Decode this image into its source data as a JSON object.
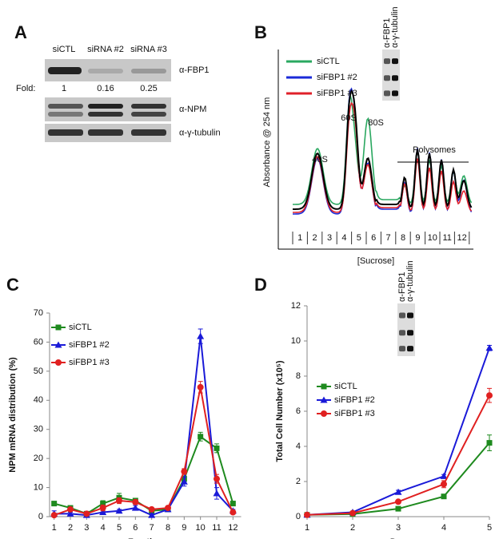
{
  "chart_data": [
    {
      "type": "blot",
      "label": "A",
      "lanes": [
        "siCTL",
        "siRNA #2",
        "siRNA #3"
      ],
      "rows": [
        "α-FBP1",
        "α-NPM",
        "α-γ-tubulin"
      ],
      "fold_label": "Fold:",
      "fold": [
        1,
        0.16,
        0.25
      ]
    },
    {
      "type": "profile",
      "label": "B",
      "y_label": "Absorbance @ 254 nm",
      "x_label": "[Sucrose]",
      "fractions": [
        "1",
        "2",
        "3",
        "4",
        "5",
        "6",
        "7",
        "8",
        "9",
        "10",
        "11",
        "12"
      ],
      "peaks": [
        "40S",
        "60S",
        "80S",
        "Polysomes"
      ],
      "inset_labels": [
        "α-FBP1",
        "α-γ-tubulin"
      ],
      "series": [
        {
          "name": "siCTL",
          "color": "#2aa860"
        },
        {
          "name": "siFBP1 #2",
          "color": "#1a2ad8"
        },
        {
          "name": "siFBP1 #3",
          "color": "#e0202a"
        }
      ]
    },
    {
      "type": "line",
      "label": "C",
      "x_label": "Fraction",
      "y_label": "NPM mRNA distribution (%)",
      "x": [
        1,
        2,
        3,
        4,
        5,
        6,
        7,
        8,
        9,
        10,
        11,
        12
      ],
      "xlim": [
        0.5,
        12.5
      ],
      "xticks": [
        1,
        2,
        3,
        4,
        5,
        6,
        7,
        8,
        9,
        10,
        11,
        12
      ],
      "ylim": [
        0,
        70
      ],
      "yticks": [
        0,
        10,
        20,
        30,
        40,
        50,
        60,
        70
      ],
      "series": [
        {
          "name": "siCTL",
          "color": "#1e8a1e",
          "marker": "square",
          "values": [
            4.5,
            3,
            1,
            4.5,
            6.5,
            5.5,
            2,
            2.5,
            13,
            27.5,
            23.5,
            4.5
          ],
          "errors": [
            0.5,
            0.5,
            0.3,
            1,
            1.5,
            0.8,
            0.3,
            0.4,
            1,
            1.5,
            1.5,
            0.8
          ]
        },
        {
          "name": "siFBP1 #2",
          "color": "#1a1ad8",
          "marker": "triangle",
          "values": [
            1,
            1,
            0.5,
            1.5,
            2,
            3,
            0.5,
            2.5,
            12,
            62,
            8,
            2
          ],
          "errors": [
            1,
            0.5,
            0.3,
            0.5,
            0.5,
            0.8,
            0.5,
            0.5,
            1.5,
            2.5,
            2,
            0.5
          ]
        },
        {
          "name": "siFBP1 #3",
          "color": "#e02020",
          "marker": "circle",
          "values": [
            0.5,
            2.5,
            1,
            3,
            5.5,
            5,
            2.5,
            3,
            15.5,
            44.5,
            13,
            1.5
          ],
          "errors": [
            0.5,
            0.5,
            0.3,
            1,
            1,
            0.8,
            0.5,
            0.5,
            1,
            2,
            1.5,
            0.5
          ]
        }
      ]
    },
    {
      "type": "line",
      "label": "D",
      "x_label": "Day",
      "y_label": "Total Cell Number (x10⁵)",
      "inset_labels": [
        "α-FBP1",
        "α-γ-tubulin"
      ],
      "x": [
        1,
        2,
        3,
        4,
        5
      ],
      "xlim": [
        1,
        5
      ],
      "xticks": [
        1,
        2,
        3,
        4,
        5
      ],
      "ylim": [
        0,
        12
      ],
      "yticks": [
        0,
        2,
        4,
        6,
        8,
        10,
        12
      ],
      "series": [
        {
          "name": "siCTL",
          "color": "#1e8a1e",
          "marker": "square",
          "values": [
            0.1,
            0.15,
            0.45,
            1.15,
            4.2
          ],
          "errors": [
            0.05,
            0.05,
            0.05,
            0.1,
            0.45
          ]
        },
        {
          "name": "siFBP1 #2",
          "color": "#1a1ad8",
          "marker": "triangle",
          "values": [
            0.1,
            0.25,
            1.4,
            2.3,
            9.6
          ],
          "errors": [
            0.05,
            0.05,
            0.1,
            0.1,
            0.15
          ]
        },
        {
          "name": "siFBP1 #3",
          "color": "#e02020",
          "marker": "circle",
          "values": [
            0.1,
            0.2,
            0.85,
            1.85,
            6.9
          ],
          "errors": [
            0.05,
            0.05,
            0.1,
            0.2,
            0.4
          ]
        }
      ]
    }
  ]
}
